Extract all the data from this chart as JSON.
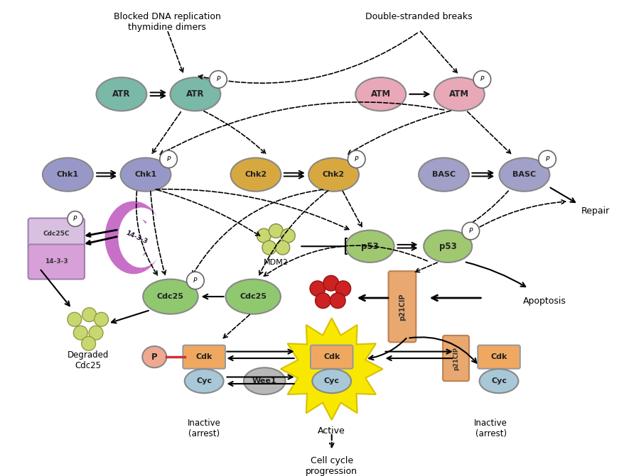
{
  "bg_color": "#ffffff",
  "fig_width": 8.79,
  "fig_height": 6.71,
  "colors": {
    "ATR_color": "#7ab8a8",
    "ATM_color": "#e8a8b8",
    "Chk1_color": "#9898c8",
    "Chk2_color": "#d8a840",
    "BASC_color": "#a0a0c8",
    "p53_color": "#a0c870",
    "MDM2_color": "#c8d870",
    "Cdc25_color": "#90c870",
    "cup_top_color": "#d8c0e0",
    "cup_bot_color": "#d8a0d8",
    "crescent_color": "#c870c8",
    "cdk_color": "#f0a860",
    "cyc_color": "#a8c8d8",
    "p21cip_color": "#e8a870",
    "wee1_color": "#b8b8b8",
    "P_color": "#f0a890",
    "red_dot_color": "#cc2222",
    "mdm2_dot_color": "#c8d870",
    "deg_dot_color": "#c8d870",
    "yellow_burst": "#f8e800",
    "burst_stroke": "#d8c000"
  },
  "texts": {
    "blocked_dna": "Blocked DNA replication\nthymidine dimers",
    "double_stranded": "Double-stranded breaks",
    "repair": "Repair",
    "apoptosis": "Apoptosis",
    "degraded": "Degraded\nCdc25",
    "inactive1": "Inactive\n(arrest)",
    "active": "Active",
    "cell_cycle": "Cell cycle\nprogression",
    "inactive2": "Inactive\n(arrest)",
    "MDM2": "MDM2"
  }
}
